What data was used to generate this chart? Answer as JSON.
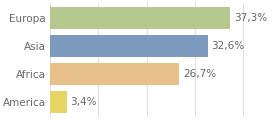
{
  "categories": [
    "Europa",
    "Asia",
    "Africa",
    "America"
  ],
  "values": [
    37.3,
    32.6,
    26.7,
    3.4
  ],
  "labels": [
    "37,3%",
    "32,6%",
    "26,7%",
    "3,4%"
  ],
  "bar_colors": [
    "#b5c98e",
    "#7b9abe",
    "#e8c08a",
    "#e8d465"
  ],
  "background_color": "#ffffff",
  "xlim": [
    0,
    47
  ],
  "bar_height": 0.78,
  "label_fontsize": 7.5,
  "cat_fontsize": 7.5,
  "grid_color": "#e0e0e0",
  "text_color": "#666666"
}
